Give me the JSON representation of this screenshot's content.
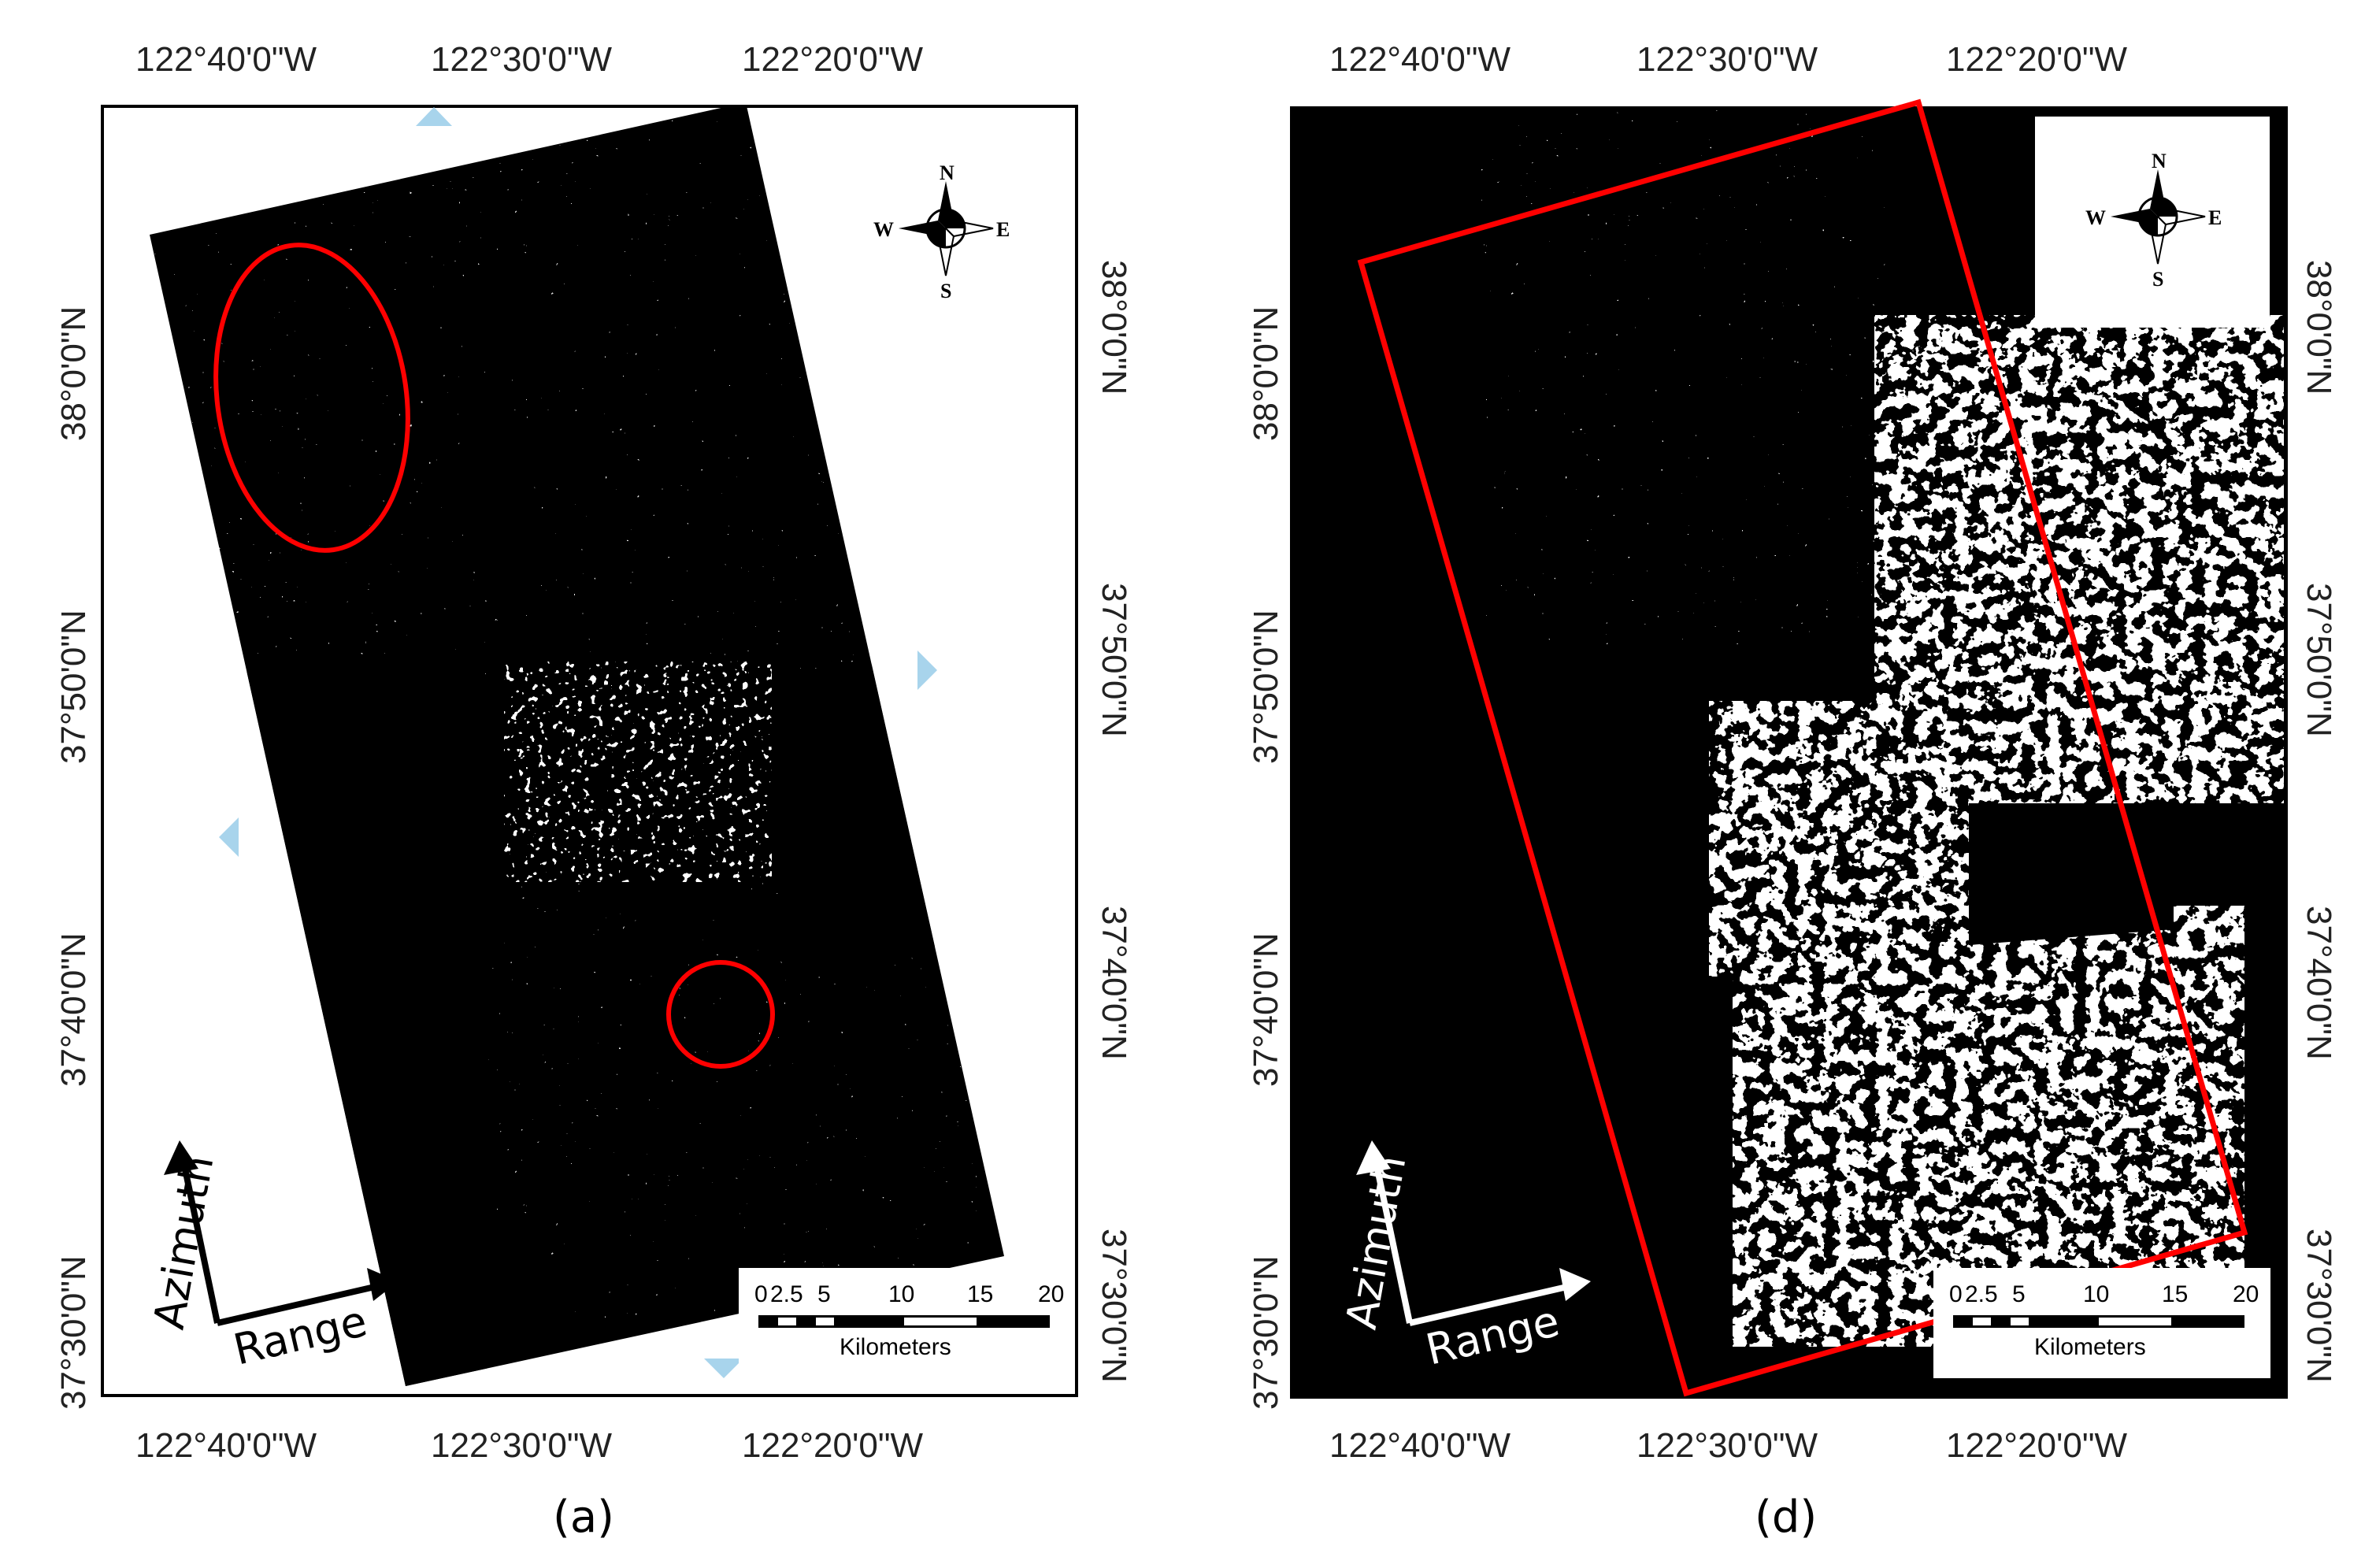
{
  "colors": {
    "outline_red": "#ff0000",
    "triangle_blue": "#a8d4ec",
    "background": "#000000",
    "features": "#ffffff"
  },
  "panel_a": {
    "label": "(a)",
    "top_lon_labels": [
      "122°40'0\"W",
      "122°30'0\"W",
      "122°20'0\"W"
    ],
    "bottom_lon_labels": [
      "122°40'0\"W",
      "122°30'0\"W",
      "122°20'0\"W"
    ],
    "left_lat_labels": [
      "38°0'0\"N",
      "37°50'0\"N",
      "37°40'0\"N",
      "37°30'0\"N"
    ],
    "right_lat_labels": [
      "38°0'0\"N",
      "37°50'0\"N",
      "37°40'0\"N",
      "37°30'0\"N"
    ],
    "compass": {
      "n": "N",
      "s": "S",
      "e": "E",
      "w": "W"
    },
    "azimuth_label": "Azimuth",
    "range_label": "Range",
    "scale": {
      "ticks": [
        "0",
        "2.5",
        "5",
        "10",
        "15",
        "20"
      ],
      "unit": "Kilometers"
    }
  },
  "panel_d": {
    "label": "(d)",
    "top_lon_labels": [
      "122°40'0\"W",
      "122°30'0\"W",
      "122°20'0\"W"
    ],
    "bottom_lon_labels": [
      "122°40'0\"W",
      "122°30'0\"W",
      "122°20'0\"W"
    ],
    "left_lat_labels": [
      "38°0'0\"N",
      "37°50'0\"N",
      "37°40'0\"N",
      "37°30'0\"N"
    ],
    "right_lat_labels": [
      "38°0'0\"N",
      "37°50'0\"N",
      "37°40'0\"N",
      "37°30'0\"N"
    ],
    "compass": {
      "n": "N",
      "s": "S",
      "e": "E",
      "w": "W"
    },
    "azimuth_label": "Azimuth",
    "range_label": "Range",
    "scale": {
      "ticks": [
        "0",
        "2.5",
        "5",
        "10",
        "15",
        "20"
      ],
      "unit": "Kilometers"
    }
  }
}
